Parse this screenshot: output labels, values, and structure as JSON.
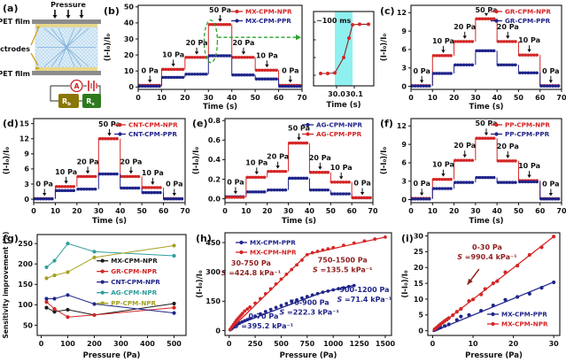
{
  "colors": {
    "red": "#d42626",
    "navy": "#20258a",
    "teal": "#2f9e9b",
    "olive": "#a3a11f",
    "black": "#1a1a1a",
    "dark_red": "#8f1f1f",
    "green": "#2aa32a",
    "cyan": "#8ff0f0",
    "gold": "#d2a017",
    "pet_gray": "#8c8c8c",
    "electrode_yellow": "#e7d78a",
    "foam_bg": "#ddeef8",
    "foam_dot": "#a4c9e6",
    "bowtie_blue": "#7fb0d8",
    "circuit_red": "#cc2222",
    "wire_gray": "#555555",
    "rb_box": "#8a7606",
    "rs_box": "#2e7a1e"
  },
  "panel_a": {
    "label": "(a)",
    "pressure": "Pressure",
    "pet_film_top": "PET film",
    "pet_film_bottom": "PET film",
    "electrodes": "Electrodes",
    "ammeter": "A",
    "r_bias": {
      "main": "R",
      "sub": "b"
    },
    "r_sense": {
      "main": "R",
      "sub": "s"
    }
  },
  "chart_data": [
    {
      "id": "b",
      "type": "line",
      "subtype": "step-response",
      "label": "(b)",
      "xlabel": "Time (s)",
      "ylabel": "(I-I₀)/I₀",
      "xlim": [
        0,
        70
      ],
      "ylim": [
        -1.5,
        51
      ],
      "xticks": [
        0,
        10,
        20,
        30,
        40,
        50,
        60,
        70
      ],
      "yticks": [
        0,
        10,
        20,
        30,
        40,
        50
      ],
      "step_times": [
        0,
        10,
        20,
        30,
        40,
        50,
        60,
        70
      ],
      "pressure_labels": [
        "0 Pa",
        "10 Pa",
        "20 Pa",
        "50 Pa",
        "20 Pa",
        "10 Pa",
        "0 Pa"
      ],
      "series": [
        {
          "name": "MX-CPM-NPR",
          "color": "red",
          "values": [
            1,
            11,
            18.5,
            39,
            18.5,
            10.5,
            1
          ]
        },
        {
          "name": "MX-CPM-PPR",
          "color": "navy",
          "values": [
            0.5,
            6,
            8,
            19.5,
            7.5,
            5,
            0.4
          ]
        }
      ],
      "response_highlight": true
    },
    {
      "id": "b_inset",
      "type": "line",
      "response_time": "~100 ms",
      "xlabel": "Time (s)",
      "xlim": [
        29.87,
        30.21
      ],
      "ylim": [
        4,
        46
      ],
      "xticks": [
        30.0,
        30.1
      ],
      "xdec": 1,
      "band": [
        29.99,
        30.09
      ],
      "series": [
        {
          "name": "MX-CPM-NPR",
          "color": "red",
          "points": [
            [
              29.91,
              11
            ],
            [
              29.95,
              11
            ],
            [
              29.99,
              11.3
            ],
            [
              30.04,
              20
            ],
            [
              30.07,
              31
            ],
            [
              30.09,
              38.5
            ],
            [
              30.13,
              38.8
            ],
            [
              30.18,
              38.8
            ]
          ]
        }
      ]
    },
    {
      "id": "c",
      "type": "line",
      "subtype": "step-response",
      "label": "(c)",
      "xlabel": "Time (s)",
      "ylabel": "(I-I₀)/I₀",
      "xlim": [
        0,
        70
      ],
      "ylim": [
        -0.5,
        13.2
      ],
      "xticks": [
        0,
        10,
        20,
        30,
        40,
        50,
        60,
        70
      ],
      "yticks": [
        0,
        3,
        6,
        9,
        12
      ],
      "step_times": [
        0,
        10,
        20,
        30,
        40,
        50,
        60,
        70
      ],
      "pressure_labels": [
        "0 Pa",
        "10 Pa",
        "20 Pa",
        "50 Pa",
        "20 Pa",
        "10 Pa",
        "0 Pa"
      ],
      "series": [
        {
          "name": "GR-CPM-NPR",
          "color": "red",
          "values": [
            0.1,
            5,
            7.3,
            11,
            7.3,
            5.1,
            0.1
          ]
        },
        {
          "name": "GR-CPM-PPR",
          "color": "navy",
          "values": [
            0.05,
            2.1,
            3.5,
            5.8,
            3.5,
            2.2,
            0.05
          ]
        }
      ]
    },
    {
      "id": "d",
      "type": "line",
      "subtype": "step-response",
      "label": "(d)",
      "xlabel": "Time (s)",
      "ylabel": "(I-I₀)/I₀",
      "xlim": [
        0,
        70
      ],
      "ylim": [
        -0.7,
        16
      ],
      "xticks": [
        0,
        10,
        20,
        30,
        40,
        50,
        60,
        70
      ],
      "yticks": [
        0,
        3,
        6,
        9,
        12,
        15
      ],
      "step_times": [
        0,
        10,
        20,
        30,
        40,
        50,
        60,
        70
      ],
      "pressure_labels": [
        "0 Pa",
        "10 Pa",
        "20 Pa",
        "50 Pa",
        "20 Pa",
        "10 Pa",
        "0 Pa"
      ],
      "series": [
        {
          "name": "CNT-CPM-NPR",
          "color": "red",
          "values": [
            0.1,
            2.5,
            4.5,
            12,
            4.5,
            2.3,
            0.1
          ]
        },
        {
          "name": "CNT-CPM-PPR",
          "color": "navy",
          "values": [
            0.05,
            1.7,
            2.0,
            5.0,
            2.2,
            1.3,
            0.05
          ]
        }
      ]
    },
    {
      "id": "e",
      "type": "line",
      "subtype": "step-response",
      "label": "(e)",
      "xlabel": "Time (s)",
      "ylabel": "(I-I₀)/I₀",
      "xlim": [
        0,
        70
      ],
      "ylim": [
        -0.04,
        0.82
      ],
      "ydec": 1,
      "xticks": [
        0,
        10,
        20,
        30,
        40,
        50,
        60,
        70
      ],
      "yticks": [
        0,
        0.2,
        0.4,
        0.6,
        0.8
      ],
      "step_times": [
        0,
        10,
        20,
        30,
        40,
        50,
        60,
        70
      ],
      "pressure_labels": [
        "0 Pa",
        "10 Pa",
        "20 Pa",
        "50 Pa",
        "20 Pa",
        "10 Pa",
        "0 Pa"
      ],
      "series": [
        {
          "name": "AG-CPM-NPR",
          "color": "navy",
          "values": [
            0.02,
            0.07,
            0.09,
            0.21,
            0.09,
            0.05,
            0.01
          ]
        },
        {
          "name": "AG-CPM-PPR",
          "color": "red",
          "values": [
            0.015,
            0.22,
            0.28,
            0.57,
            0.27,
            0.17,
            0.01
          ]
        }
      ]
    },
    {
      "id": "f",
      "type": "line",
      "subtype": "step-response",
      "label": "(f)",
      "xlabel": "Time (s)",
      "ylabel": "(I-I₀)/I₀",
      "xlim": [
        0,
        70
      ],
      "ylim": [
        -0.5,
        13.2
      ],
      "xticks": [
        0,
        10,
        20,
        30,
        40,
        50,
        60,
        70
      ],
      "yticks": [
        0,
        3,
        6,
        9,
        12
      ],
      "step_times": [
        0,
        10,
        20,
        30,
        40,
        50,
        60,
        70
      ],
      "pressure_labels": [
        "0 Pa",
        "10 Pa",
        "20 Pa",
        "50 Pa",
        "20 Pa",
        "10 Pa",
        "0 Pa"
      ],
      "series": [
        {
          "name": "PP-CPM-NPR",
          "color": "red",
          "values": [
            0.2,
            3.3,
            6.4,
            10,
            6.3,
            3.1,
            0.15
          ]
        },
        {
          "name": "PP-CPM-PPR",
          "color": "navy",
          "values": [
            0.1,
            1.8,
            2.8,
            3.6,
            2.8,
            2.9,
            0.1
          ]
        }
      ]
    },
    {
      "id": "g",
      "type": "scatter",
      "label": "(g)",
      "xlabel": "Pressure (Pa)",
      "ylabel": "Sensitivity improvement (%)",
      "xlim": [
        -15,
        545
      ],
      "ylim": [
        25,
        272
      ],
      "xticks": [
        0,
        100,
        200,
        300,
        400,
        500
      ],
      "yticks": [
        50,
        100,
        150,
        200,
        250
      ],
      "x": [
        20,
        50,
        100,
        200,
        500
      ],
      "series": [
        {
          "name": "MX-CPM-NPR",
          "color": "black",
          "y": [
            93,
            83,
            88,
            75,
            103
          ]
        },
        {
          "name": "GR-CPM-NPR",
          "color": "red",
          "y": [
            107,
            90,
            70,
            75,
            93
          ]
        },
        {
          "name": "CNT-CPM-NPR",
          "color": "navy",
          "y": [
            115,
            115,
            124,
            102,
            80
          ]
        },
        {
          "name": "AG-CPM-NPR",
          "color": "teal",
          "y": [
            192,
            208,
            250,
            230,
            220
          ]
        },
        {
          "name": "PP-CPM-NPR",
          "color": "olive",
          "y": [
            165,
            172,
            180,
            216,
            245
          ]
        }
      ]
    },
    {
      "id": "h",
      "type": "scatter",
      "label": "(h)",
      "xlabel": "Pressure (Pa)",
      "ylabel": "(I-I₀)/I₀",
      "xlim": [
        -40,
        1560
      ],
      "ylim": [
        -25,
        500
      ],
      "xticks": [
        0,
        250,
        500,
        750,
        1000,
        1250,
        1500
      ],
      "yticks": [
        0,
        150,
        300,
        450
      ],
      "series": [
        {
          "name": "MX-CPM-PPR",
          "color": "navy",
          "points": [
            [
              10,
              4
            ],
            [
              20,
              8
            ],
            [
              30,
              12
            ],
            [
              40,
              17
            ],
            [
              50,
              22
            ],
            [
              60,
              26
            ],
            [
              70,
              30
            ],
            [
              85,
              34
            ],
            [
              100,
              38
            ],
            [
              125,
              44
            ],
            [
              150,
              50
            ],
            [
              175,
              56
            ],
            [
              200,
              62
            ],
            [
              250,
              74
            ],
            [
              300,
              85
            ],
            [
              350,
              97
            ],
            [
              400,
              108
            ],
            [
              450,
              118
            ],
            [
              500,
              128
            ],
            [
              550,
              138
            ],
            [
              600,
              148
            ],
            [
              650,
              157
            ],
            [
              700,
              166
            ],
            [
              750,
              174
            ],
            [
              800,
              182
            ],
            [
              850,
              189
            ],
            [
              900,
              196
            ],
            [
              950,
              202
            ],
            [
              1000,
              208
            ],
            [
              1050,
              214
            ],
            [
              1100,
              219
            ],
            [
              1150,
              225
            ],
            [
              1200,
              230
            ]
          ],
          "fit": [
            [
              0,
              0
            ],
            [
              70,
              30
            ],
            [
              900,
              196
            ],
            [
              1200,
              231
            ]
          ]
        },
        {
          "name": "MX-CPM-NPR",
          "color": "red",
          "points": [
            [
              10,
              6
            ],
            [
              25,
              18
            ],
            [
              40,
              30
            ],
            [
              55,
              41
            ],
            [
              70,
              52
            ],
            [
              85,
              61
            ],
            [
              100,
              70
            ],
            [
              115,
              79
            ],
            [
              130,
              88
            ],
            [
              150,
              100
            ],
            [
              175,
              110
            ],
            [
              200,
              120
            ],
            [
              250,
              140
            ],
            [
              300,
              163
            ],
            [
              350,
              188
            ],
            [
              400,
              213
            ],
            [
              450,
              238
            ],
            [
              500,
              263
            ],
            [
              550,
              288
            ],
            [
              600,
              312
            ],
            [
              650,
              336
            ],
            [
              700,
              360
            ],
            [
              750,
              388
            ],
            [
              800,
              398
            ],
            [
              850,
              405
            ],
            [
              900,
              412
            ],
            [
              950,
              418
            ],
            [
              1000,
              424
            ],
            [
              1100,
              436
            ],
            [
              1200,
              447
            ],
            [
              1300,
              458
            ],
            [
              1400,
              468
            ],
            [
              1500,
              478
            ]
          ],
          "fit": [
            [
              0,
              0
            ],
            [
              750,
              390
            ],
            [
              1500,
              478
            ]
          ]
        }
      ],
      "annotations": [
        {
          "range": "30-750 Pa",
          "s": "424.8 kPa⁻¹",
          "color": "dark_red",
          "x": 210,
          "y": 315
        },
        {
          "range": "750-1500 Pa",
          "s": "135.5 kPa⁻¹",
          "color": "dark_red",
          "x": 1090,
          "y": 330
        },
        {
          "range": "0-70 Pa",
          "s": "395.2 kPa⁻¹",
          "color": "navy",
          "x": 330,
          "y": 42
        },
        {
          "range": "70-900 Pa",
          "s": "222.3 kPa⁻¹",
          "color": "navy",
          "x": 770,
          "y": 112
        },
        {
          "range": "900-1200 Pa",
          "s": "71.4 kPa⁻¹",
          "color": "navy",
          "x": 1300,
          "y": 178
        }
      ]
    },
    {
      "id": "i",
      "type": "scatter",
      "label": "(i)",
      "xlabel": "Pressure (Pa)",
      "ylabel": "(I-I₀)/I₀",
      "xlim": [
        -1.2,
        31.5
      ],
      "ylim": [
        -1.5,
        31
      ],
      "xticks": [
        0,
        10,
        20,
        30
      ],
      "yticks": [
        0,
        5,
        10,
        15,
        20,
        25,
        30
      ],
      "series": [
        {
          "name": "MX-CPM-PPR",
          "color": "navy",
          "points": [
            [
              0.5,
              0.2
            ],
            [
              1,
              0.5
            ],
            [
              1.5,
              0.8
            ],
            [
              2,
              1
            ],
            [
              3,
              1.5
            ],
            [
              4,
              2
            ],
            [
              6,
              3.4
            ],
            [
              7,
              4.5
            ],
            [
              9,
              5
            ],
            [
              12,
              6.3
            ],
            [
              15,
              8
            ],
            [
              18,
              9.8
            ],
            [
              21,
              10.7
            ],
            [
              24,
              11.7
            ],
            [
              27,
              13.6
            ],
            [
              30,
              15.3
            ]
          ],
          "fit": [
            [
              0,
              -0.3
            ],
            [
              30,
              15.4
            ]
          ]
        },
        {
          "name": "MX-CPM-NPR",
          "color": "red",
          "points": [
            [
              0.5,
              0.5
            ],
            [
              1,
              1
            ],
            [
              1.5,
              1.6
            ],
            [
              2,
              2.1
            ],
            [
              2.5,
              2.6
            ],
            [
              3,
              3.1
            ],
            [
              3.5,
              3.5
            ],
            [
              4,
              4
            ],
            [
              5,
              4.9
            ],
            [
              6,
              6
            ],
            [
              7,
              6.9
            ],
            [
              9,
              9.4
            ],
            [
              10,
              9.9
            ],
            [
              12,
              11.5
            ],
            [
              13,
              13.2
            ],
            [
              15,
              15
            ],
            [
              16,
              15.7
            ],
            [
              18,
              18.5
            ],
            [
              21,
              20.6
            ],
            [
              24,
              24
            ],
            [
              27,
              26.4
            ],
            [
              30,
              29.8
            ]
          ],
          "fit": [
            [
              0,
              0
            ],
            [
              30,
              29.8
            ]
          ]
        }
      ],
      "annotations": [
        {
          "range": "0-30 Pa",
          "s": "990.4 kPa⁻¹",
          "color": "dark_red",
          "x": 13.5,
          "y": 24.5
        }
      ],
      "annotation_arrow": {
        "from": [
          11.5,
          19.5
        ],
        "to": [
          8.6,
          14.6
        ],
        "color": "dark_red"
      }
    }
  ]
}
